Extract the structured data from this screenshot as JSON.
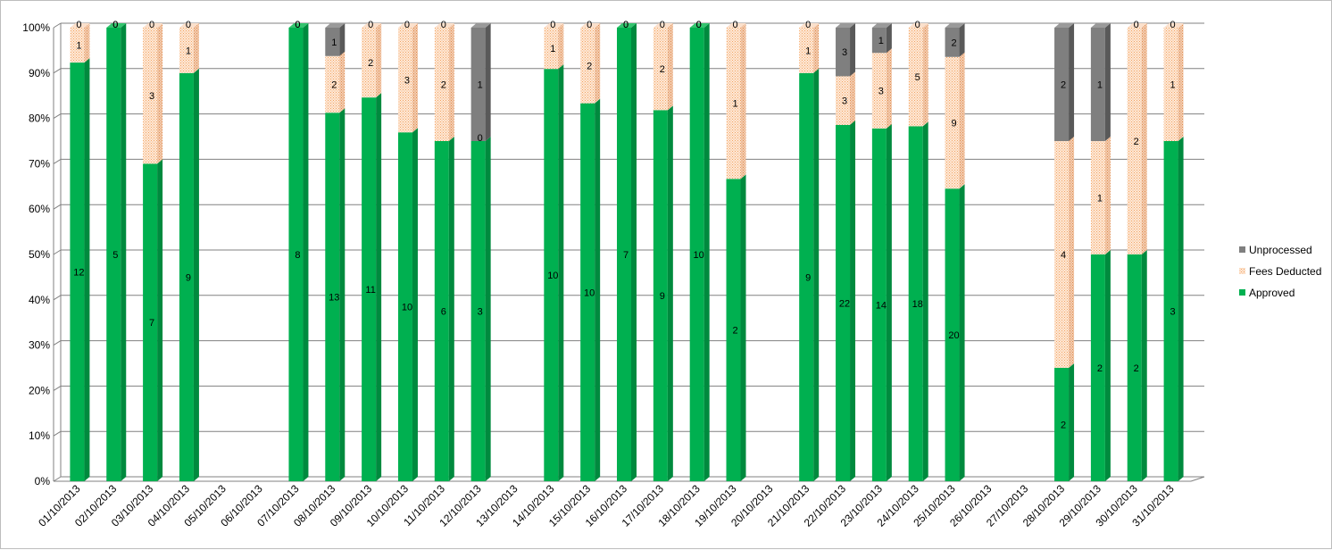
{
  "chart_data": {
    "type": "bar",
    "stacked": "percent",
    "categories": [
      "01/10/2013",
      "02/10/2013",
      "03/10/2013",
      "04/10/2013",
      "05/10/2013",
      "06/10/2013",
      "07/10/2013",
      "08/10/2013",
      "09/10/2013",
      "10/10/2013",
      "11/10/2013",
      "12/10/2013",
      "13/10/2013",
      "14/10/2013",
      "15/10/2013",
      "16/10/2013",
      "17/10/2013",
      "18/10/2013",
      "19/10/2013",
      "20/10/2013",
      "21/10/2013",
      "22/10/2013",
      "23/10/2013",
      "24/10/2013",
      "25/10/2013",
      "26/10/2013",
      "27/10/2013",
      "28/10/2013",
      "29/10/2013",
      "30/10/2013",
      "31/10/2013"
    ],
    "series": [
      {
        "name": "Approved",
        "color": "#00b050",
        "side_color": "#008a3e",
        "values": [
          12,
          5,
          7,
          9,
          null,
          null,
          8,
          13,
          11,
          10,
          6,
          3,
          null,
          10,
          10,
          7,
          9,
          10,
          2,
          null,
          9,
          22,
          14,
          18,
          20,
          null,
          null,
          2,
          2,
          2,
          3
        ]
      },
      {
        "name": "Fees Deducted",
        "color": "#fde9d9",
        "side_color": "#f3cdb2",
        "values": [
          1,
          0,
          3,
          1,
          null,
          null,
          0,
          2,
          2,
          3,
          2,
          0,
          null,
          1,
          2,
          0,
          2,
          0,
          1,
          null,
          1,
          3,
          3,
          5,
          9,
          null,
          null,
          4,
          1,
          2,
          1
        ]
      },
      {
        "name": "Unprocessed",
        "color": "#7f7f7f",
        "side_color": "#595959",
        "values": [
          0,
          0,
          0,
          0,
          null,
          null,
          0,
          1,
          0,
          0,
          0,
          1,
          null,
          0,
          0,
          0,
          0,
          0,
          0,
          null,
          0,
          3,
          1,
          0,
          2,
          null,
          null,
          2,
          1,
          0,
          0
        ]
      }
    ],
    "y_ticks": [
      "0%",
      "10%",
      "20%",
      "30%",
      "40%",
      "50%",
      "60%",
      "70%",
      "80%",
      "90%",
      "100%"
    ],
    "ylim": [
      0,
      100
    ],
    "grid": true,
    "legend_position": "right",
    "legend_order": [
      "Unprocessed",
      "Fees Deducted",
      "Approved"
    ]
  }
}
